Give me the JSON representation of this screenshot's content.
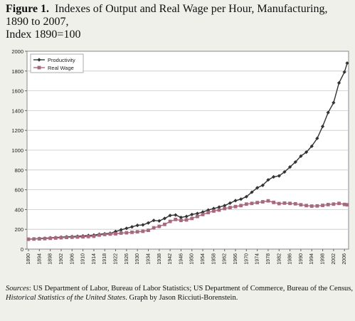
{
  "title": {
    "figure_label": "Figure 1.",
    "line1": "Indexes of Output and Real Wage per Hour, Manufacturing,",
    "line2": "1890 to 2007,",
    "line3": "Index 1890=100"
  },
  "sources": {
    "lead": "Sources",
    "part1": ": US Department of Labor, Bureau of Labor Statistics; US Department of Commerce, Bureau of the Census, ",
    "book": "Historical Statistics of the United States",
    "part2": ". Graph by Jason Ricciuti-Borenstein."
  },
  "chart_data": {
    "type": "line",
    "ylim": [
      0,
      2000
    ],
    "yticks": [
      0,
      200,
      400,
      600,
      800,
      1000,
      1200,
      1400,
      1600,
      1800,
      2000
    ],
    "xlim": [
      1890,
      2007
    ],
    "xticks": [
      1890,
      1894,
      1898,
      1902,
      1906,
      1910,
      1914,
      1918,
      1922,
      1926,
      1930,
      1934,
      1938,
      1942,
      1946,
      1950,
      1954,
      1958,
      1962,
      1966,
      1970,
      1974,
      1978,
      1982,
      1986,
      1990,
      1994,
      1998,
      2002,
      2006
    ],
    "legend_position": "top-left",
    "grid": "horizontal",
    "series": [
      {
        "name": "Productivity",
        "color": "#333333",
        "marker": "diamond",
        "x": [
          1890,
          1892,
          1894,
          1896,
          1898,
          1900,
          1902,
          1904,
          1906,
          1908,
          1910,
          1912,
          1914,
          1916,
          1918,
          1920,
          1922,
          1924,
          1926,
          1928,
          1930,
          1932,
          1934,
          1936,
          1938,
          1940,
          1942,
          1944,
          1946,
          1948,
          1950,
          1952,
          1954,
          1956,
          1958,
          1960,
          1962,
          1964,
          1966,
          1968,
          1970,
          1972,
          1974,
          1976,
          1978,
          1980,
          1982,
          1984,
          1986,
          1988,
          1990,
          1992,
          1994,
          1996,
          1998,
          2000,
          2002,
          2004,
          2006,
          2007
        ],
        "values": [
          100,
          103,
          107,
          110,
          114,
          117,
          121,
          124,
          127,
          130,
          133,
          138,
          142,
          150,
          155,
          160,
          178,
          195,
          210,
          225,
          240,
          245,
          265,
          290,
          285,
          310,
          340,
          345,
          320,
          330,
          350,
          360,
          375,
          395,
          410,
          425,
          440,
          465,
          490,
          505,
          530,
          575,
          620,
          645,
          700,
          730,
          740,
          780,
          830,
          880,
          940,
          980,
          1040,
          1120,
          1240,
          1380,
          1480,
          1680,
          1790,
          1880
        ]
      },
      {
        "name": "Real Wage",
        "color": "#a8687f",
        "marker": "square",
        "x": [
          1890,
          1892,
          1894,
          1896,
          1898,
          1900,
          1902,
          1904,
          1906,
          1908,
          1910,
          1912,
          1914,
          1916,
          1918,
          1920,
          1922,
          1924,
          1926,
          1928,
          1930,
          1932,
          1934,
          1936,
          1938,
          1940,
          1942,
          1944,
          1946,
          1948,
          1950,
          1952,
          1954,
          1956,
          1958,
          1960,
          1962,
          1964,
          1966,
          1968,
          1970,
          1972,
          1974,
          1976,
          1978,
          1980,
          1982,
          1984,
          1986,
          1988,
          1990,
          1992,
          1994,
          1996,
          1998,
          2000,
          2002,
          2004,
          2006,
          2007
        ],
        "values": [
          100,
          102,
          104,
          106,
          109,
          112,
          115,
          118,
          120,
          122,
          124,
          127,
          130,
          142,
          148,
          152,
          155,
          162,
          165,
          170,
          175,
          180,
          190,
          215,
          230,
          250,
          280,
          300,
          290,
          295,
          310,
          330,
          350,
          370,
          385,
          395,
          410,
          420,
          430,
          440,
          455,
          462,
          470,
          478,
          488,
          472,
          460,
          465,
          462,
          458,
          448,
          440,
          435,
          437,
          442,
          450,
          455,
          462,
          452,
          448
        ]
      }
    ]
  }
}
